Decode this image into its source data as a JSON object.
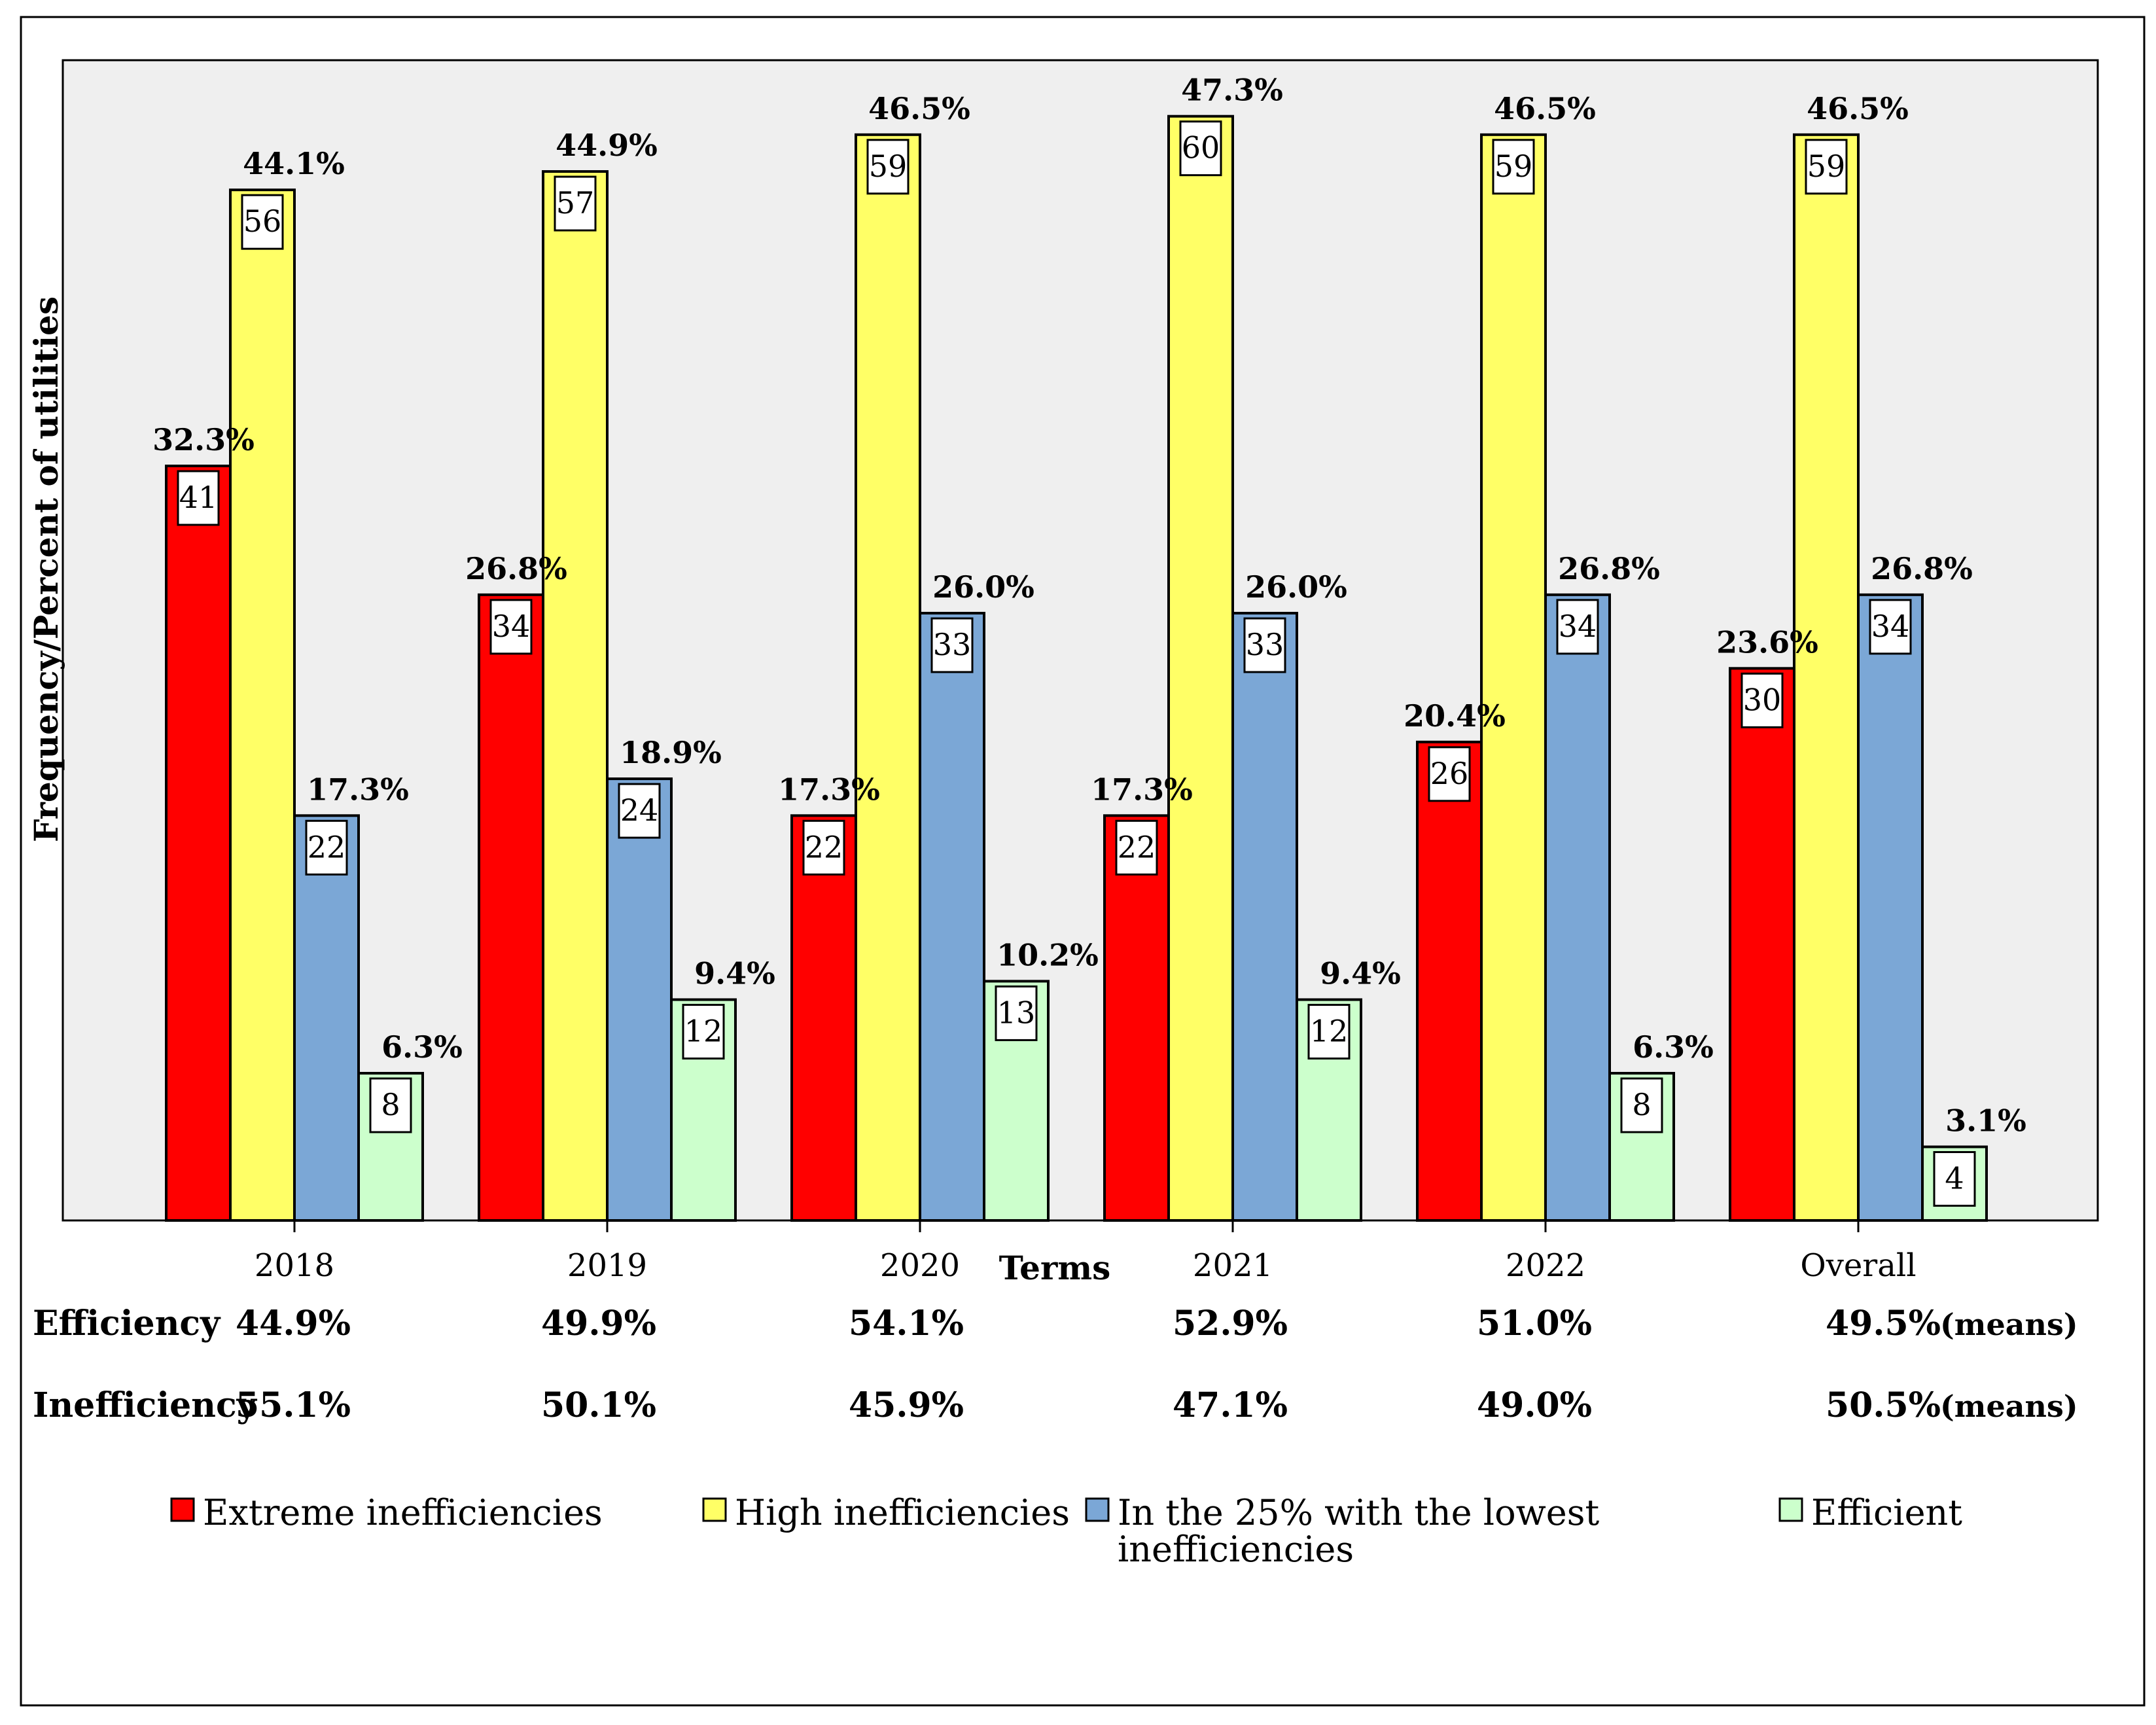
{
  "chart_data": {
    "type": "bar",
    "xlabel": "Terms",
    "ylabel": "Frequency/Percent of utilities",
    "ylim": [
      0,
      64
    ],
    "grid": false,
    "legend_position": "bottom",
    "categories": [
      "2018",
      "2019",
      "2020",
      "2021",
      "2022",
      "Overall"
    ],
    "series": [
      {
        "name": "Extreme inefficiencies",
        "color": "#ff0000",
        "values": [
          41,
          34,
          22,
          22,
          26,
          30
        ],
        "percents": [
          "32.3%",
          "26.8%",
          "17.3%",
          "17.3%",
          "20.4%",
          "23.6%"
        ]
      },
      {
        "name": "High inefficiencies",
        "color": "#ffff66",
        "values": [
          56,
          57,
          59,
          60,
          59,
          59
        ],
        "percents": [
          "44.1%",
          "44.9%",
          "46.5%",
          "47.3%",
          "46.5%",
          "46.5%"
        ]
      },
      {
        "name": "In the 25% with the lowest inefficiencies",
        "color": "#7ba7d6",
        "legend_lines": [
          "In the 25% with the lowest",
          "inefficiencies"
        ],
        "values": [
          22,
          24,
          33,
          33,
          34,
          34
        ],
        "percents": [
          "17.3%",
          "18.9%",
          "26.0%",
          "26.0%",
          "26.8%",
          "26.8%"
        ]
      },
      {
        "name": "Efficient",
        "color": "#ccffcc",
        "values": [
          8,
          12,
          13,
          12,
          8,
          4
        ],
        "percents": [
          "6.3%",
          "9.4%",
          "10.2%",
          "9.4%",
          "6.3%",
          "3.1%"
        ]
      }
    ],
    "summary_rows": [
      {
        "label": "Efficiency",
        "values": [
          "44.9%",
          "49.9%",
          "54.1%",
          "52.9%",
          "51.0%",
          "49.5%"
        ],
        "suffix": "(means)"
      },
      {
        "label": "Inefficiency",
        "values": [
          "55.1%",
          "50.1%",
          "45.9%",
          "47.1%",
          "49.0%",
          "50.5%"
        ],
        "suffix": "(means)"
      }
    ]
  }
}
